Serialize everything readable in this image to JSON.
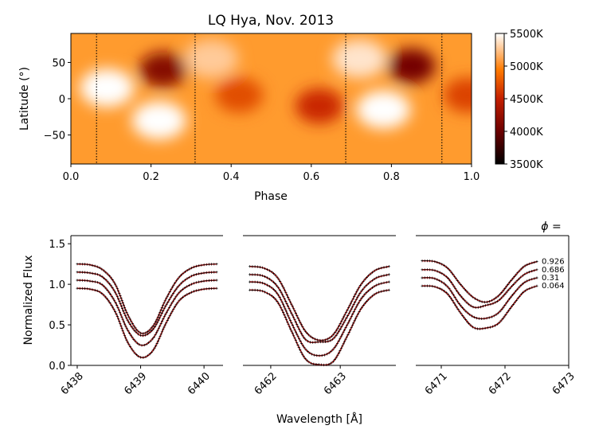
{
  "chart_data": [
    {
      "type": "heatmap",
      "title": "LQ Hya, Nov. 2013",
      "xlabel": "Phase",
      "ylabel": "Latitude (°)",
      "xlim": [
        0.0,
        1.0
      ],
      "ylim": [
        -90,
        90
      ],
      "x_ticks": [
        "0.0",
        "0.2",
        "0.4",
        "0.6",
        "0.8",
        "1.0"
      ],
      "y_ticks": [
        "50",
        "0",
        "−50"
      ],
      "observed_phases": [
        0.064,
        0.31,
        0.686,
        0.926
      ],
      "colorbar": {
        "ticks": [
          "5500K",
          "5000K",
          "4500K",
          "4000K",
          "3500K"
        ],
        "range_K": [
          3500,
          5500
        ]
      },
      "spots": [
        {
          "phase": 0.23,
          "latitude": 40,
          "temperature_K": 4150,
          "label": "cool spot"
        },
        {
          "phase": 0.42,
          "latitude": 5,
          "temperature_K": 4750,
          "label": "cool spot"
        },
        {
          "phase": 0.62,
          "latitude": -10,
          "temperature_K": 4550,
          "label": "cool spot"
        },
        {
          "phase": 0.85,
          "latitude": 45,
          "temperature_K": 4050,
          "label": "cool spot"
        },
        {
          "phase": 0.99,
          "latitude": 5,
          "temperature_K": 4700,
          "label": "cool spot"
        },
        {
          "phase": 0.09,
          "latitude": 15,
          "temperature_K": 5500,
          "label": "hot region"
        },
        {
          "phase": 0.22,
          "latitude": -30,
          "temperature_K": 5500,
          "label": "hot region"
        },
        {
          "phase": 0.78,
          "latitude": -15,
          "temperature_K": 5500,
          "label": "hot region"
        },
        {
          "phase": 0.35,
          "latitude": 55,
          "temperature_K": 5300,
          "label": "hot region"
        },
        {
          "phase": 0.72,
          "latitude": 55,
          "temperature_K": 5400,
          "label": "hot region"
        }
      ]
    },
    {
      "type": "line",
      "ylabel": "Normalized Flux",
      "xlabel": "Wavelength [Å]",
      "ylim": [
        0.0,
        1.6
      ],
      "y_ticks": [
        "0.0",
        "0.5",
        "1.0",
        "1.5"
      ],
      "phase_label": "ϕ =",
      "phase_values": [
        "0.926",
        "0.686",
        "0.31",
        "0.064"
      ],
      "phase_offsets": [
        0.3,
        0.2,
        0.1,
        0.0
      ],
      "panels": [
        {
          "name": "6439",
          "xlim": [
            6437.9,
            6440.3
          ],
          "x_ticks": [
            "6438",
            "6439",
            "6440"
          ],
          "tick_values": [
            6438,
            6439,
            6440
          ],
          "continuum": 0.95,
          "series": [
            {
              "phase": "0.926",
              "x": [
                6438.0,
                6438.2,
                6438.4,
                6438.6,
                6438.8,
                6439.0,
                6439.2,
                6439.4,
                6439.6,
                6439.8,
                6440.0,
                6440.2
              ],
              "y": [
                1.25,
                1.24,
                1.18,
                1.0,
                0.62,
                0.4,
                0.49,
                0.82,
                1.08,
                1.2,
                1.24,
                1.25
              ]
            },
            {
              "phase": "0.686",
              "x": [
                6438.0,
                6438.2,
                6438.4,
                6438.6,
                6438.8,
                6439.0,
                6439.2,
                6439.4,
                6439.6,
                6439.8,
                6440.0,
                6440.2
              ],
              "y": [
                1.15,
                1.14,
                1.09,
                0.9,
                0.55,
                0.37,
                0.45,
                0.74,
                0.98,
                1.1,
                1.14,
                1.15
              ]
            },
            {
              "phase": "0.31",
              "x": [
                6438.0,
                6438.2,
                6438.4,
                6438.6,
                6438.8,
                6439.0,
                6439.2,
                6439.4,
                6439.6,
                6439.8,
                6440.0,
                6440.2
              ],
              "y": [
                1.05,
                1.04,
                0.99,
                0.78,
                0.43,
                0.25,
                0.34,
                0.64,
                0.89,
                1.0,
                1.04,
                1.05
              ]
            },
            {
              "phase": "0.064",
              "x": [
                6438.0,
                6438.2,
                6438.4,
                6438.6,
                6438.8,
                6439.0,
                6439.2,
                6439.4,
                6439.6,
                6439.8,
                6440.0,
                6440.2
              ],
              "y": [
                0.95,
                0.94,
                0.88,
                0.66,
                0.28,
                0.1,
                0.19,
                0.52,
                0.79,
                0.9,
                0.94,
                0.95
              ]
            }
          ]
        },
        {
          "name": "6462",
          "xlim": [
            6461.6,
            6463.8
          ],
          "x_ticks": [
            "6462",
            "6463"
          ],
          "tick_values": [
            6462,
            6463
          ],
          "continuum": 0.93,
          "series": [
            {
              "phase": "0.926",
              "x": [
                6461.7,
                6461.9,
                6462.1,
                6462.3,
                6462.5,
                6462.7,
                6462.9,
                6463.1,
                6463.3,
                6463.5,
                6463.7
              ],
              "y": [
                1.22,
                1.2,
                1.08,
                0.75,
                0.42,
                0.31,
                0.38,
                0.68,
                1.0,
                1.17,
                1.22
              ]
            },
            {
              "phase": "0.686",
              "x": [
                6461.7,
                6461.9,
                6462.1,
                6462.3,
                6462.5,
                6462.7,
                6462.9,
                6463.1,
                6463.3,
                6463.5,
                6463.7
              ],
              "y": [
                1.12,
                1.1,
                0.97,
                0.64,
                0.32,
                0.29,
                0.33,
                0.6,
                0.91,
                1.07,
                1.12
              ]
            },
            {
              "phase": "0.31",
              "x": [
                6461.7,
                6461.9,
                6462.1,
                6462.3,
                6462.5,
                6462.7,
                6462.9,
                6463.1,
                6463.3,
                6463.5,
                6463.7
              ],
              "y": [
                1.03,
                1.01,
                0.88,
                0.52,
                0.2,
                0.12,
                0.2,
                0.5,
                0.82,
                0.98,
                1.03
              ]
            },
            {
              "phase": "0.064",
              "x": [
                6461.7,
                6461.9,
                6462.1,
                6462.3,
                6462.5,
                6462.7,
                6462.9,
                6463.1,
                6463.3,
                6463.5,
                6463.7
              ],
              "y": [
                0.93,
                0.91,
                0.78,
                0.42,
                0.08,
                0.01,
                0.05,
                0.36,
                0.7,
                0.88,
                0.93
              ]
            }
          ]
        },
        {
          "name": "6471",
          "xlim": [
            6470.6,
            6473.0
          ],
          "x_ticks": [
            "6471",
            "6472",
            "6473"
          ],
          "tick_values": [
            6471,
            6472,
            6473
          ],
          "continuum": 0.98,
          "series": [
            {
              "phase": "0.926",
              "x": [
                6470.7,
                6470.9,
                6471.1,
                6471.3,
                6471.5,
                6471.7,
                6471.9,
                6472.1,
                6472.3,
                6472.5
              ],
              "y": [
                1.29,
                1.28,
                1.2,
                1.0,
                0.84,
                0.78,
                0.86,
                1.05,
                1.22,
                1.28
              ]
            },
            {
              "phase": "0.686",
              "x": [
                6470.7,
                6470.9,
                6471.1,
                6471.3,
                6471.5,
                6471.7,
                6471.9,
                6472.1,
                6472.3,
                6472.5
              ],
              "y": [
                1.18,
                1.17,
                1.08,
                0.86,
                0.72,
                0.74,
                0.8,
                0.97,
                1.12,
                1.18
              ]
            },
            {
              "phase": "0.31",
              "x": [
                6470.7,
                6470.9,
                6471.1,
                6471.3,
                6471.5,
                6471.7,
                6471.9,
                6472.1,
                6472.3,
                6472.5
              ],
              "y": [
                1.08,
                1.07,
                0.97,
                0.74,
                0.6,
                0.58,
                0.65,
                0.85,
                1.02,
                1.08
              ]
            },
            {
              "phase": "0.064",
              "x": [
                6470.7,
                6470.9,
                6471.1,
                6471.3,
                6471.5,
                6471.7,
                6471.9,
                6472.1,
                6472.3,
                6472.5
              ],
              "y": [
                0.98,
                0.97,
                0.88,
                0.65,
                0.47,
                0.46,
                0.52,
                0.72,
                0.91,
                0.98
              ]
            }
          ]
        }
      ],
      "colors": {
        "model": "#d62020",
        "data": "#000000"
      }
    }
  ],
  "colors": {
    "stops": [
      "#000000",
      "#6b0000",
      "#c31f00",
      "#ff7a00",
      "#ffffff"
    ]
  }
}
